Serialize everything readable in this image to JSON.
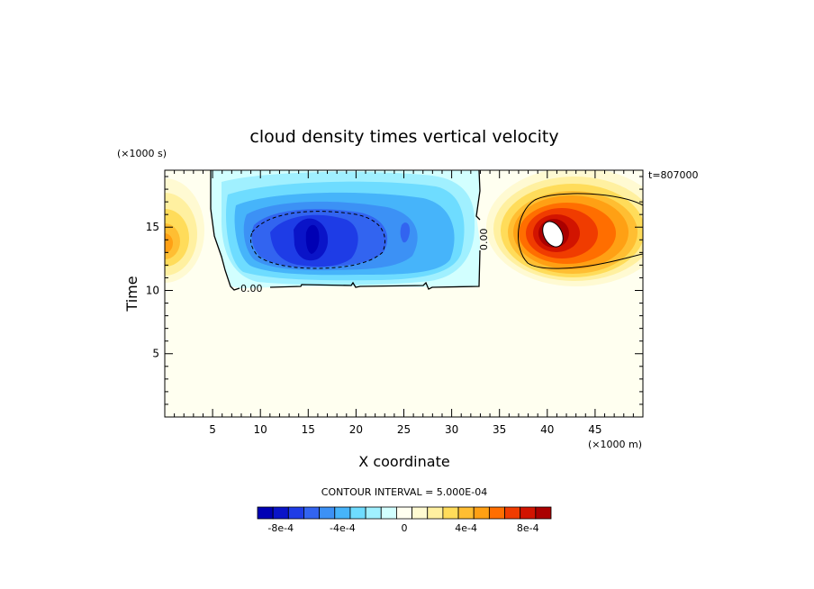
{
  "chart_data": {
    "type": "heatmap",
    "title": "cloud density times vertical velocity",
    "xlabel": "X coordinate",
    "ylabel": "Time",
    "x_unit": "(×1000 m)",
    "y_unit": "(×1000 s)",
    "time_stamp": "t=807000",
    "xlim": [
      0,
      50
    ],
    "ylim": [
      0,
      19.5
    ],
    "x_ticks": [
      5,
      10,
      15,
      20,
      25,
      30,
      35,
      40,
      45
    ],
    "x_tick_labels": [
      "5",
      "10",
      "15",
      "20",
      "25",
      "30",
      "35",
      "40",
      "45"
    ],
    "y_ticks": [
      5,
      10,
      15
    ],
    "y_tick_labels": [
      "5",
      "10",
      "15"
    ],
    "contour_interval_text": "CONTOUR INTERVAL = 5.000E-04",
    "contour_label": "0.00",
    "colorbar": {
      "colors": [
        "#0000b4",
        "#0a14c8",
        "#1e3ce6",
        "#3264f0",
        "#3c91f5",
        "#46b4fa",
        "#6edcff",
        "#a0f0ff",
        "#d2ffff",
        "#fffff0",
        "#fffad2",
        "#fff0a0",
        "#ffdc5a",
        "#ffbe32",
        "#ffa014",
        "#ff6e00",
        "#f03c00",
        "#d21400",
        "#aa0000"
      ],
      "tick_labels": [
        "-8e-4",
        "-4e-4",
        "0",
        "4e-4",
        "8e-4"
      ],
      "tick_values": [
        -0.0008,
        -0.0004,
        0,
        0.0004,
        0.0008
      ]
    }
  }
}
